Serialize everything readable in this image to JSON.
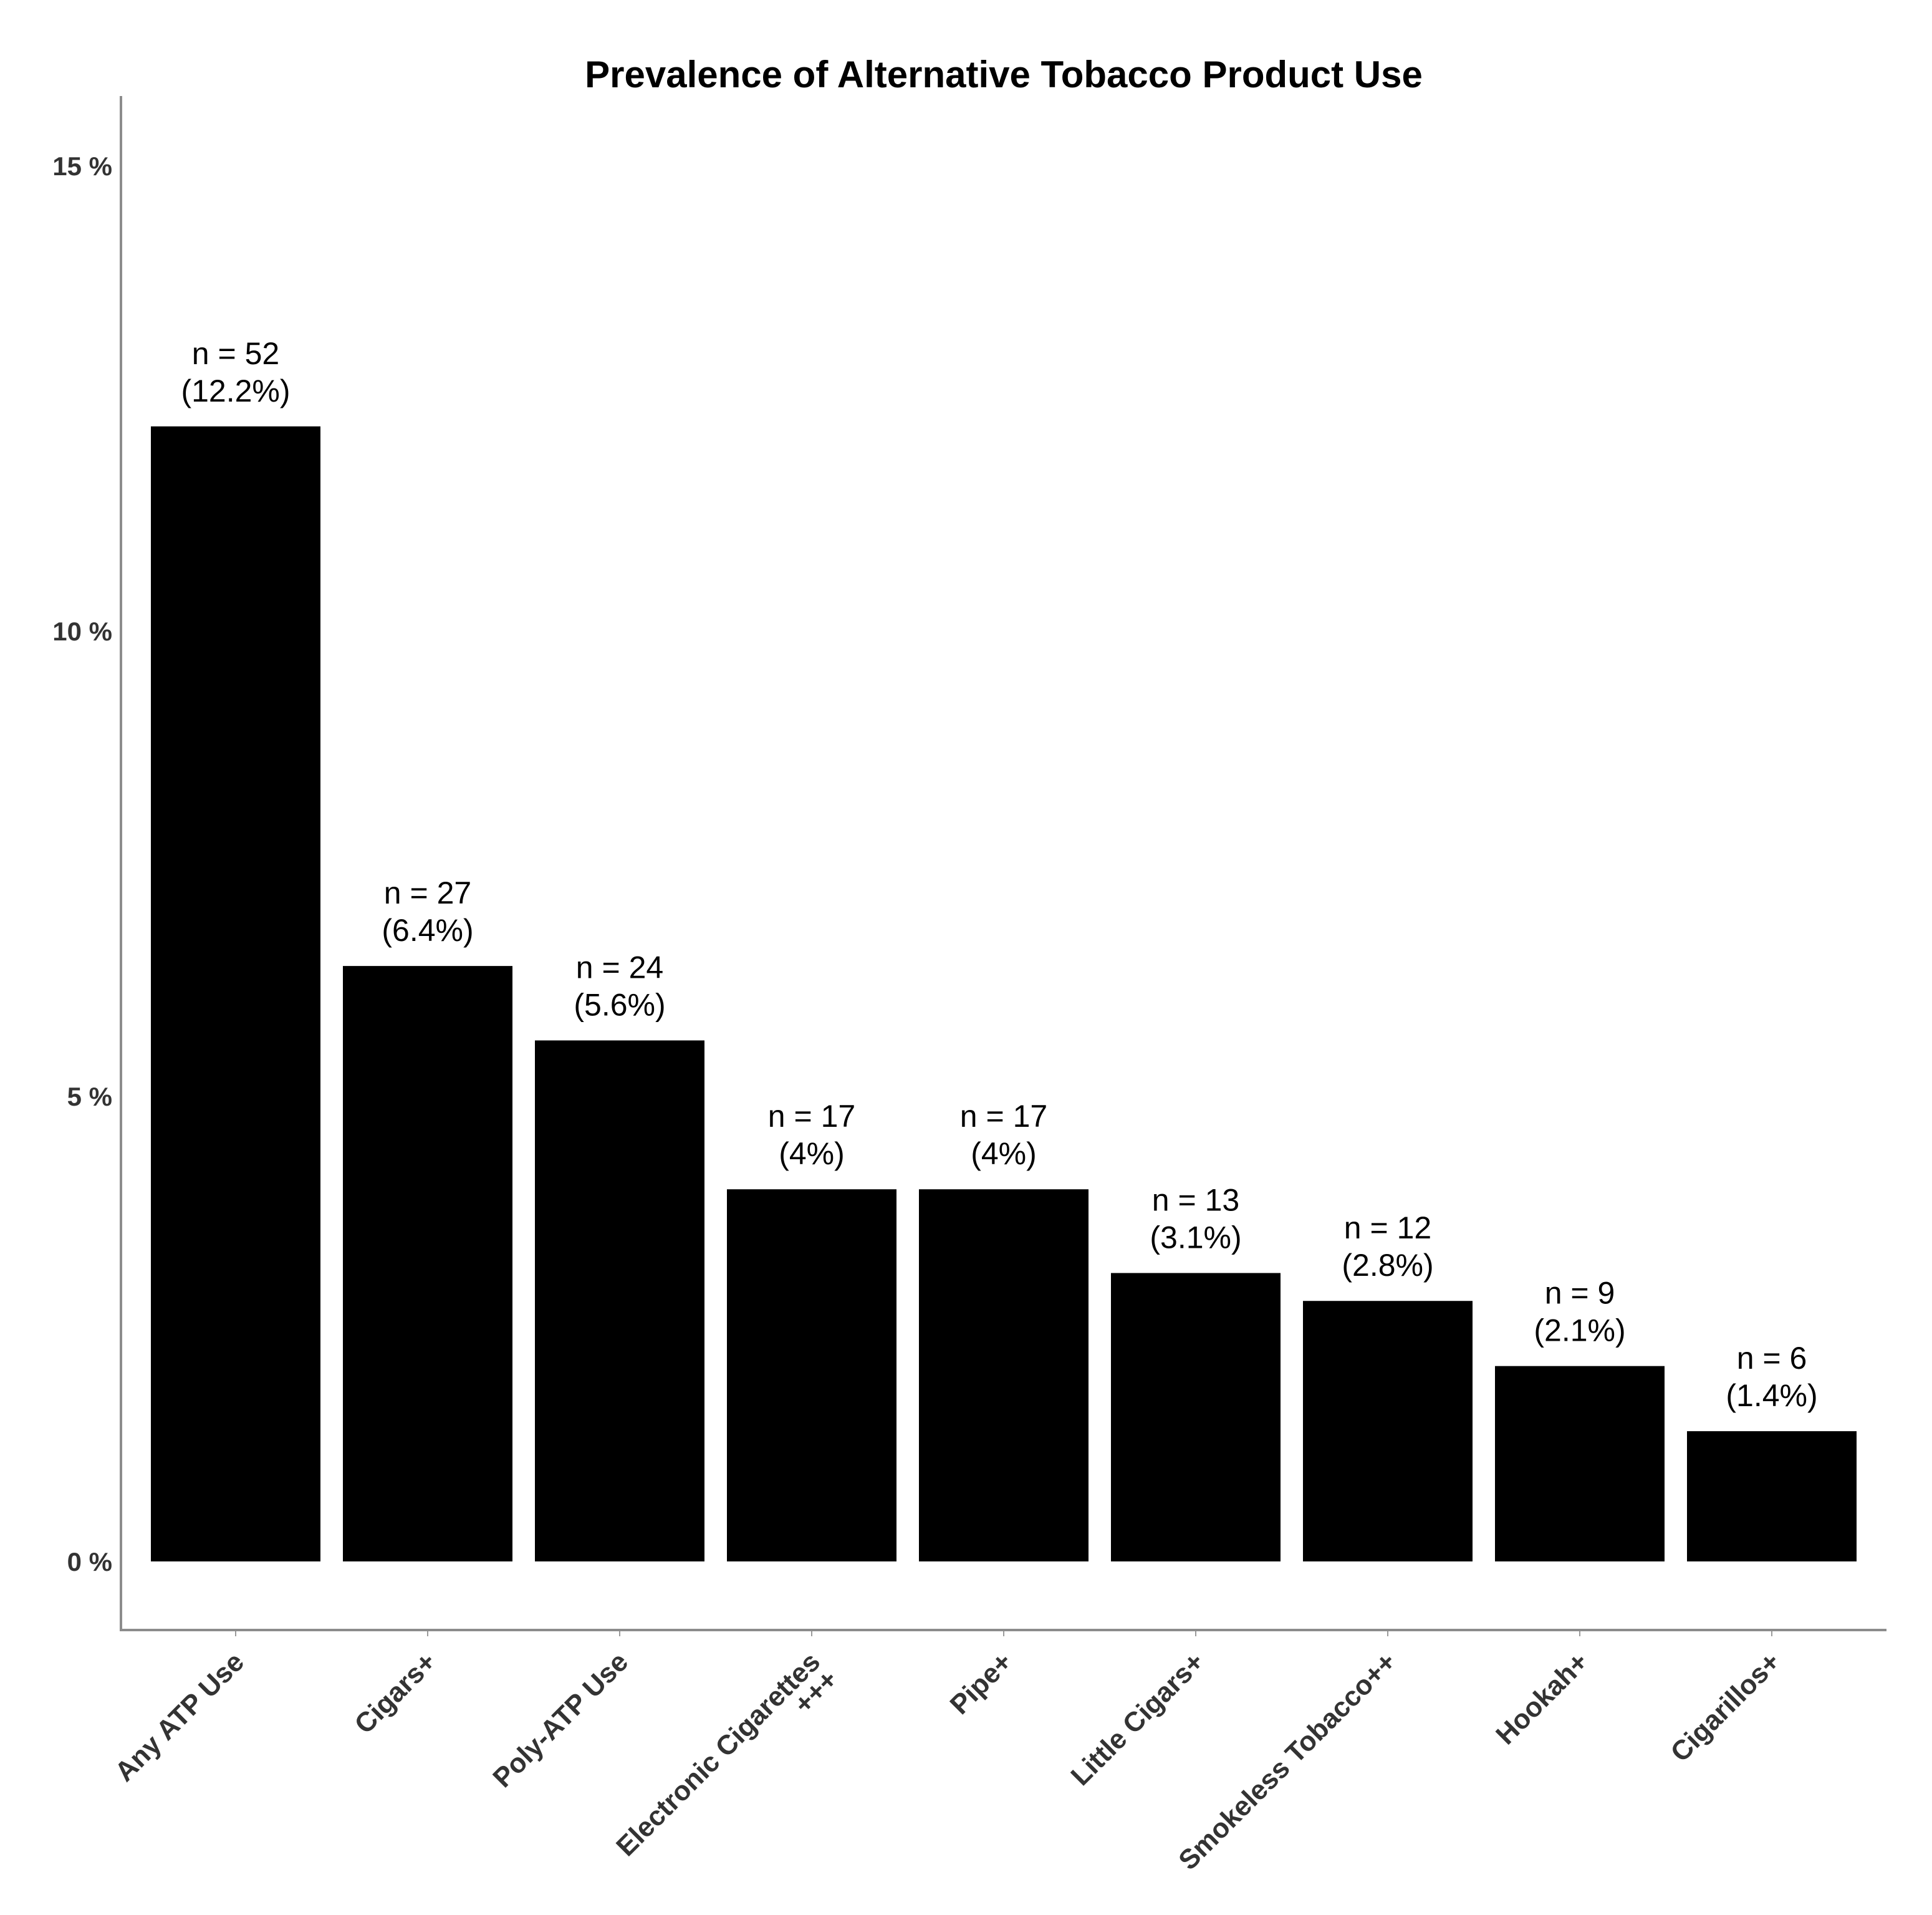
{
  "chart_data": {
    "type": "bar",
    "title": "Prevalence of Alternative Tobacco Product Use",
    "xlabel": "",
    "ylabel": "",
    "ylim": [
      -0.7,
      15.7
    ],
    "yticks": [
      {
        "value": 0,
        "label": "0 %"
      },
      {
        "value": 5,
        "label": "5 %"
      },
      {
        "value": 10,
        "label": "10 %"
      },
      {
        "value": 15,
        "label": "15 %"
      }
    ],
    "grid": false,
    "legend": "none",
    "bar_color": "#000000",
    "categories": [
      [
        "Any ATP Use"
      ],
      [
        "Cigars+"
      ],
      [
        "Poly-ATP Use"
      ],
      [
        "Electronic Cigarettes",
        "+++"
      ],
      [
        "Pipe+"
      ],
      [
        "Little Cigars+"
      ],
      [
        "Smokeless Tobacco++"
      ],
      [
        "Hookah+"
      ],
      [
        "Cigarillos+"
      ]
    ],
    "values": [
      12.2,
      6.4,
      5.6,
      4.0,
      4.0,
      3.1,
      2.8,
      2.1,
      1.4
    ],
    "counts": [
      "n = 52",
      "n = 27",
      "n = 24",
      "n = 17",
      "n = 17",
      "n = 13",
      "n = 12",
      "n = 9",
      "n = 6"
    ],
    "value_labels": [
      "(12.2%)",
      "(6.4%)",
      "(5.6%)",
      "(4%)",
      "(4%)",
      "(3.1%)",
      "(2.8%)",
      "(2.1%)",
      "(1.4%)"
    ]
  }
}
